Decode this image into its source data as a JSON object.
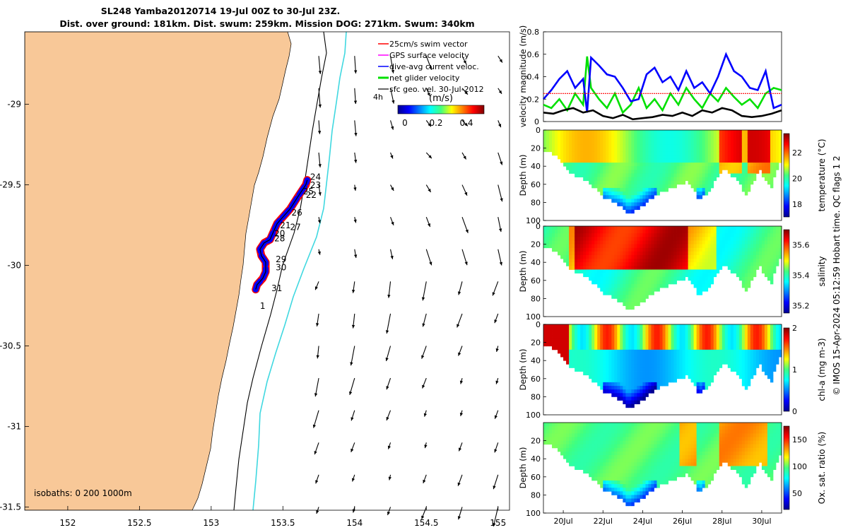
{
  "title": {
    "line1": "SL248 Yamba20120714 19-Jul 00Z to 30-Jul 23Z.",
    "line2": "Dist. over ground: 181km. Dist. swum: 259km. Mission DOG: 271km. Swum: 340km"
  },
  "copyright": "© IMOS 15-Apr-2024 05:12:59 Hobart time. QC flags 1  2",
  "colors": {
    "land": "#f8c898",
    "swim_vector": "#ff0000",
    "gps_velocity": "#ff00ff",
    "dive_avg_current": "#0000ff",
    "net_glider_velocity": "#00e000",
    "isobath_200": "#000000",
    "isobath_1000": "#40d8e0"
  },
  "chart_data": [
    {
      "type": "map",
      "name": "track-map",
      "x_ticks": [
        "152",
        "152.5",
        "153",
        "153.5",
        "154",
        "154.5",
        "155"
      ],
      "x_tick_values": [
        152,
        152.5,
        153,
        153.5,
        154,
        154.5,
        155
      ],
      "y_ticks": [
        "-29",
        "-29.5",
        "-30",
        "-30.5",
        "-31",
        "-31.5"
      ],
      "y_tick_values": [
        -29,
        -29.5,
        -30,
        -30.5,
        -31,
        -31.5
      ],
      "xlim": [
        151.7,
        155.08
      ],
      "ylim": [
        -31.52,
        -28.55
      ],
      "isobaths_label": "isobaths: 0   200  1000m",
      "legend": [
        {
          "label": "25cm/s swim vector",
          "color": "#ff0000"
        },
        {
          "label": "GPS surface velocity",
          "color": "#ff00ff"
        },
        {
          "label": "dive-avg current veloc.",
          "color": "#0000ff"
        },
        {
          "label": "net glider velocity",
          "color": "#00e000"
        },
        {
          "label": "sfc geo. vel. 30-Jul-2012",
          "color": "#000000"
        }
      ],
      "arrow_note": "4h",
      "colorbar": {
        "label": "(m/s)",
        "ticks": [
          "0",
          "0.2",
          "0.4"
        ],
        "range": [
          0,
          0.5
        ]
      },
      "day_labels": [
        {
          "text": "24",
          "lon": 153.69,
          "lat": -29.47
        },
        {
          "text": "23",
          "lon": 153.69,
          "lat": -29.52
        },
        {
          "text": "25",
          "lon": 153.64,
          "lat": -29.56
        },
        {
          "text": "22",
          "lon": 153.66,
          "lat": -29.58
        },
        {
          "text": "26",
          "lon": 153.56,
          "lat": -29.69
        },
        {
          "text": "21",
          "lon": 153.48,
          "lat": -29.77
        },
        {
          "text": "27",
          "lon": 153.55,
          "lat": -29.78
        },
        {
          "text": "20",
          "lon": 153.44,
          "lat": -29.82
        },
        {
          "text": "28",
          "lon": 153.44,
          "lat": -29.85
        },
        {
          "text": "29",
          "lon": 153.45,
          "lat": -29.98
        },
        {
          "text": "30",
          "lon": 153.45,
          "lat": -30.03
        },
        {
          "text": "31",
          "lon": 153.42,
          "lat": -30.16
        },
        {
          "text": "1",
          "lon": 153.34,
          "lat": -30.27
        }
      ],
      "track": [
        [
          153.31,
          -30.15
        ],
        [
          153.32,
          -30.12
        ],
        [
          153.36,
          -30.08
        ],
        [
          153.38,
          -30.04
        ],
        [
          153.38,
          -29.98
        ],
        [
          153.35,
          -29.94
        ],
        [
          153.34,
          -29.9
        ],
        [
          153.37,
          -29.86
        ],
        [
          153.41,
          -29.84
        ],
        [
          153.43,
          -29.8
        ],
        [
          153.46,
          -29.74
        ],
        [
          153.5,
          -29.7
        ],
        [
          153.55,
          -29.65
        ],
        [
          153.6,
          -29.58
        ],
        [
          153.66,
          -29.5
        ],
        [
          153.67,
          -29.47
        ]
      ],
      "geo_velocity_grid": {
        "lons": [
          153.5,
          153.75,
          154.0,
          154.25,
          154.5,
          154.75,
          155.0
        ],
        "lats": [
          -28.7,
          -28.9,
          -29.1,
          -29.3,
          -29.5,
          -29.7,
          -29.9,
          -30.1,
          -30.3,
          -30.5,
          -30.7,
          -30.9,
          -31.1,
          -31.3,
          -31.5
        ]
      }
    },
    {
      "type": "line",
      "name": "velocity-panel",
      "ylabel": "velocity magnitude (m/s)",
      "yticks": [
        "0",
        "0.2",
        "0.4",
        "0.6",
        "0.8"
      ],
      "ylim": [
        0,
        0.8
      ],
      "xlim": [
        19,
        31
      ],
      "series": [
        {
          "color": "#00e000",
          "x": [
            19,
            19.4,
            19.8,
            20.2,
            20.6,
            21,
            21.2,
            21.4,
            21.8,
            22.2,
            22.6,
            23,
            23.4,
            23.8,
            24.2,
            24.6,
            25,
            25.4,
            25.8,
            26.2,
            26.6,
            27,
            27.4,
            27.8,
            28.2,
            28.6,
            29,
            29.4,
            29.8,
            30.2,
            30.6,
            31
          ],
          "values": [
            0.15,
            0.12,
            0.2,
            0.1,
            0.25,
            0.15,
            0.58,
            0.3,
            0.2,
            0.12,
            0.25,
            0.08,
            0.15,
            0.3,
            0.12,
            0.2,
            0.1,
            0.25,
            0.15,
            0.3,
            0.2,
            0.12,
            0.25,
            0.18,
            0.3,
            0.22,
            0.15,
            0.2,
            0.12,
            0.25,
            0.3,
            0.28
          ]
        },
        {
          "color": "#0000ff",
          "x": [
            19,
            19.4,
            19.8,
            20.2,
            20.6,
            21,
            21.2,
            21.4,
            21.8,
            22.2,
            22.6,
            23,
            23.4,
            23.8,
            24.2,
            24.6,
            25,
            25.4,
            25.8,
            26.2,
            26.6,
            27,
            27.4,
            27.8,
            28.2,
            28.6,
            29,
            29.4,
            29.8,
            30.2,
            30.6,
            31
          ],
          "values": [
            0.2,
            0.28,
            0.38,
            0.45,
            0.3,
            0.38,
            0.08,
            0.57,
            0.5,
            0.42,
            0.4,
            0.3,
            0.18,
            0.2,
            0.42,
            0.48,
            0.35,
            0.4,
            0.28,
            0.45,
            0.3,
            0.35,
            0.25,
            0.4,
            0.6,
            0.45,
            0.4,
            0.3,
            0.28,
            0.45,
            0.12,
            0.15
          ]
        },
        {
          "color": "#ff0000",
          "x": [
            19,
            31
          ],
          "values": [
            0.25,
            0.25
          ],
          "dashed": true
        },
        {
          "color": "#000000",
          "x": [
            19,
            19.5,
            20,
            20.5,
            21,
            21.5,
            22,
            22.5,
            23,
            23.5,
            24,
            24.5,
            25,
            25.5,
            26,
            26.5,
            27,
            27.5,
            28,
            28.5,
            29,
            29.5,
            30,
            30.5,
            31
          ],
          "values": [
            0.08,
            0.07,
            0.1,
            0.12,
            0.08,
            0.1,
            0.05,
            0.03,
            0.06,
            0.02,
            0.03,
            0.04,
            0.06,
            0.05,
            0.08,
            0.05,
            0.1,
            0.08,
            0.12,
            0.1,
            0.05,
            0.04,
            0.05,
            0.07,
            0.1
          ]
        }
      ]
    },
    {
      "type": "heatmap",
      "name": "temperature-section",
      "ylabel": "Depth (m)",
      "yticks": [
        "0",
        "20",
        "40",
        "60",
        "80",
        "100"
      ],
      "cbar_label": "temperature (°C)",
      "cbar_ticks": [
        "18",
        "20",
        "22"
      ],
      "cbar_range": [
        17,
        23.5
      ],
      "bottom_depth": [
        [
          19,
          20
        ],
        [
          19.6,
          28
        ],
        [
          20.2,
          45
        ],
        [
          21,
          52
        ],
        [
          22,
          72
        ],
        [
          22.8,
          82
        ],
        [
          23.2,
          92
        ],
        [
          23.8,
          85
        ],
        [
          24.6,
          70
        ],
        [
          25.4,
          62
        ],
        [
          26.2,
          55
        ],
        [
          26.8,
          76
        ],
        [
          27.4,
          62
        ],
        [
          28,
          40
        ],
        [
          28.6,
          52
        ],
        [
          29.2,
          70
        ],
        [
          29.8,
          42
        ],
        [
          30.4,
          62
        ],
        [
          31,
          25
        ]
      ]
    },
    {
      "type": "heatmap",
      "name": "salinity-section",
      "ylabel": "Depth (m)",
      "yticks": [
        "0",
        "20",
        "40",
        "60",
        "80",
        "100"
      ],
      "cbar_label": "salinity",
      "cbar_ticks": [
        "35.2",
        "35.4",
        "35.6"
      ],
      "cbar_range": [
        35.15,
        35.7
      ]
    },
    {
      "type": "heatmap",
      "name": "chla-section",
      "ylabel": "Depth (m)",
      "yticks": [
        "0",
        "20",
        "40",
        "60",
        "80",
        "100"
      ],
      "cbar_label": "chl-a (mg m-3)",
      "cbar_ticks": [
        "0",
        "1",
        "2"
      ],
      "cbar_range": [
        0,
        2
      ]
    },
    {
      "type": "heatmap",
      "name": "oxygen-section",
      "ylabel": "Depth (m)",
      "yticks": [
        "20",
        "40",
        "60",
        "80",
        "100"
      ],
      "xticks": [
        "20Jul",
        "22Jul",
        "24Jul",
        "26Jul",
        "28Jul",
        "30Jul"
      ],
      "xtick_values": [
        20,
        22,
        24,
        26,
        28,
        30
      ],
      "cbar_label": "Ox. sat. ratio (%)",
      "cbar_ticks": [
        "50",
        "100",
        "150"
      ],
      "cbar_range": [
        20,
        175
      ]
    }
  ]
}
